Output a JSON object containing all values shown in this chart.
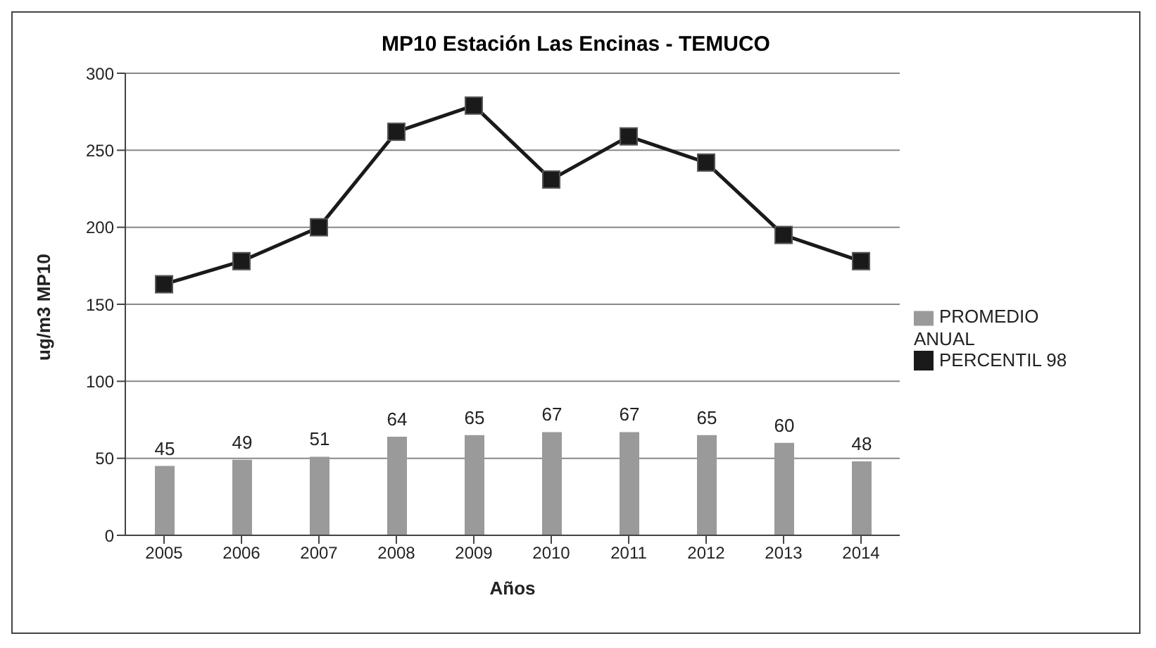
{
  "chart_data": {
    "type": "bar",
    "title": "MP10  Estación Las Encinas - TEMUCO",
    "xlabel": "Años",
    "ylabel": "ug/m3 MP10",
    "categories": [
      "2005",
      "2006",
      "2007",
      "2008",
      "2009",
      "2010",
      "2011",
      "2012",
      "2013",
      "2014"
    ],
    "series": [
      {
        "name": "PROMEDIO ANUAL",
        "color": "#9a9a9a",
        "values": [
          45,
          49,
          51,
          64,
          65,
          67,
          67,
          65,
          60,
          48
        ],
        "data_labels": true
      },
      {
        "name": "PERCENTIL 98",
        "type": "line",
        "color": "#1a1a1a",
        "marker": "square",
        "values": [
          163,
          178,
          200,
          262,
          279,
          231,
          259,
          242,
          195,
          178
        ]
      }
    ],
    "ylim": [
      0,
      300
    ],
    "yticks": [
      0,
      50,
      100,
      150,
      200,
      250,
      300
    ],
    "grid": "y",
    "legend": "right"
  }
}
